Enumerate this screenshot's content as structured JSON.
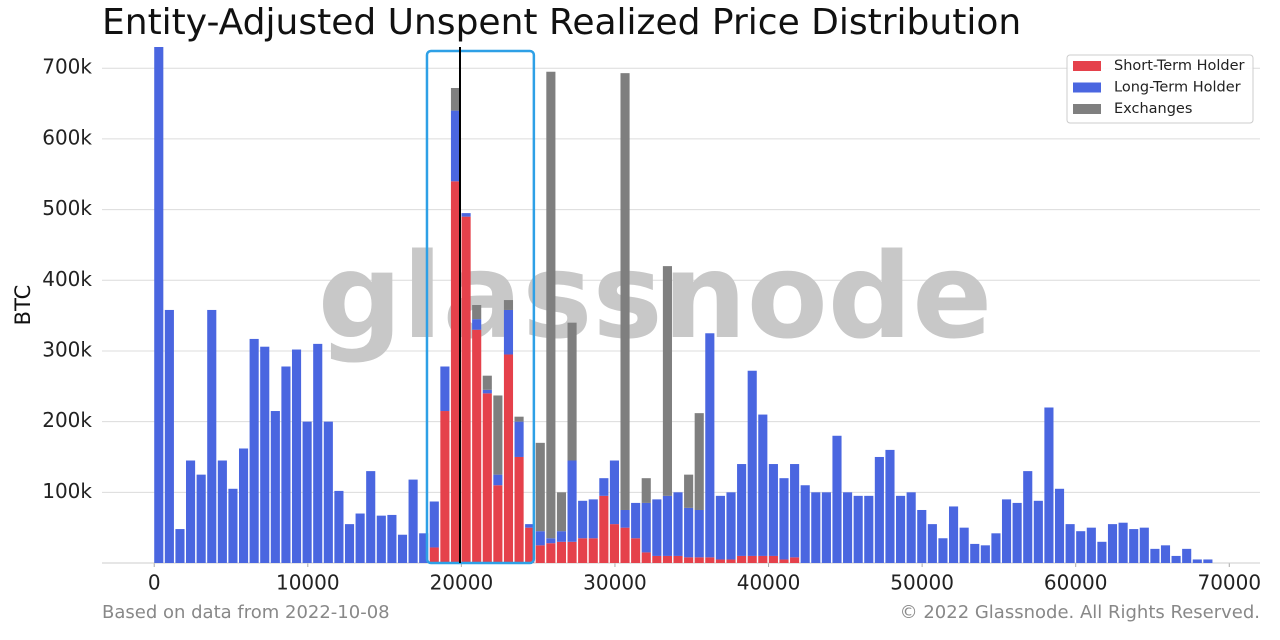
{
  "chart_data": {
    "type": "stacked_histogram",
    "title": "Entity-Adjusted Unspent Realized Price Distribution",
    "ylabel": "BTC",
    "watermark": "glassnode",
    "footer_left": "Based on data from 2022-10-08",
    "footer_right": "© 2022 Glassnode. All Rights Reserved.",
    "bins": [
      0,
      690,
      1380,
      2070,
      2760,
      3450,
      4140,
      4830,
      5520,
      6210,
      6900,
      7590,
      8280,
      8970,
      9660,
      10350,
      11040,
      11730,
      12420,
      13110,
      13800,
      14490,
      15180,
      15870,
      16560,
      17250,
      17940,
      18630,
      19320,
      20010,
      20700,
      21390,
      22080,
      22770,
      23460,
      24150,
      24840,
      25530,
      26220,
      26910,
      27600,
      28290,
      28980,
      29670,
      30360,
      31050,
      31740,
      32430,
      33120,
      33810,
      34500,
      35190,
      35880,
      36570,
      37260,
      37950,
      38640,
      39330,
      40020,
      40710,
      41400,
      42090,
      42780,
      43470,
      44160,
      44850,
      45540,
      46230,
      46920,
      47610,
      48300,
      48990,
      49680,
      50370,
      51060,
      51750,
      52440,
      53130,
      53820,
      54510,
      55200,
      55890,
      56580,
      57270,
      57960,
      58650,
      59340,
      60030,
      60720,
      61410,
      62100,
      62790,
      63480,
      64170,
      64860,
      65550,
      66240,
      66930,
      67620,
      68310,
      69000
    ],
    "series": [
      {
        "name": "Short-Term Holder",
        "color": "#e5414b",
        "values": [
          0,
          0,
          0,
          0,
          0,
          0,
          0,
          0,
          0,
          0,
          0,
          0,
          0,
          0,
          0,
          0,
          0,
          0,
          0,
          0,
          0,
          0,
          0,
          0,
          0,
          0,
          22000,
          215000,
          540000,
          490000,
          330000,
          240000,
          110000,
          295000,
          150000,
          50000,
          25000,
          28000,
          30000,
          30000,
          35000,
          35000,
          95000,
          55000,
          50000,
          35000,
          15000,
          10000,
          10000,
          10000,
          8000,
          8000,
          8000,
          5000,
          5000,
          10000,
          10000,
          10000,
          10000,
          5000,
          8000,
          0,
          0,
          0,
          0,
          0,
          0,
          0,
          0,
          0,
          0,
          0,
          0,
          0,
          0,
          0,
          0,
          0,
          0,
          0,
          0,
          0,
          0,
          0,
          0,
          0,
          0,
          0,
          0,
          0,
          0,
          0,
          0,
          0,
          0,
          0,
          0,
          0,
          0,
          0
        ]
      },
      {
        "name": "Long-Term Holder",
        "color": "#4a66e0",
        "values": [
          730000,
          358000,
          48000,
          145000,
          125000,
          358000,
          145000,
          105000,
          162000,
          317000,
          306000,
          215000,
          278000,
          302000,
          200000,
          310000,
          200000,
          102000,
          55000,
          70000,
          130000,
          67000,
          68000,
          40000,
          118000,
          42000,
          65000,
          63000,
          100000,
          5000,
          15000,
          5000,
          15000,
          63000,
          50000,
          5000,
          20000,
          7000,
          15000,
          115000,
          53000,
          55000,
          25000,
          90000,
          25000,
          50000,
          70000,
          80000,
          85000,
          90000,
          70000,
          67000,
          317000,
          90000,
          95000,
          130000,
          262000,
          200000,
          130000,
          115000,
          132000,
          110000,
          100000,
          100000,
          180000,
          100000,
          95000,
          95000,
          150000,
          160000,
          95000,
          100000,
          75000,
          55000,
          35000,
          80000,
          50000,
          27000,
          25000,
          42000,
          90000,
          85000,
          130000,
          88000,
          220000,
          105000,
          55000,
          45000,
          50000,
          30000,
          55000,
          57000,
          48000,
          50000,
          20000,
          25000,
          10000,
          20000,
          5000,
          5000
        ]
      },
      {
        "name": "Exchanges",
        "color": "#7f7f7f",
        "values": [
          0,
          0,
          0,
          0,
          0,
          0,
          0,
          0,
          0,
          0,
          0,
          0,
          0,
          0,
          0,
          0,
          0,
          0,
          0,
          0,
          0,
          0,
          0,
          0,
          0,
          0,
          0,
          0,
          32000,
          0,
          20000,
          20000,
          112000,
          14000,
          7000,
          0,
          125000,
          660000,
          55000,
          195000,
          0,
          0,
          0,
          0,
          618000,
          0,
          35000,
          0,
          325000,
          0,
          47000,
          137000,
          0,
          0,
          0,
          0,
          0,
          0,
          0,
          0,
          0,
          0,
          0,
          0,
          0,
          0,
          0,
          0,
          0,
          0,
          0,
          0,
          0,
          0,
          0,
          0,
          0,
          0,
          0,
          0,
          0,
          0,
          0,
          0,
          0,
          0,
          0,
          0,
          0,
          0,
          0,
          0,
          0,
          0,
          0,
          0,
          0,
          0,
          0,
          0
        ]
      }
    ],
    "xlim": [
      -3400,
      72000
    ],
    "xticks": [
      0,
      10000,
      20000,
      30000,
      40000,
      50000,
      60000,
      70000
    ],
    "ylim": [
      0,
      730000
    ],
    "yticks": [
      {
        "value": 100000,
        "label": "100k"
      },
      {
        "value": 200000,
        "label": "200k"
      },
      {
        "value": 300000,
        "label": "300k"
      },
      {
        "value": 400000,
        "label": "400k"
      },
      {
        "value": 500000,
        "label": "500k"
      },
      {
        "value": 600000,
        "label": "600k"
      },
      {
        "value": 700000,
        "label": "700k"
      }
    ],
    "marker_x": 19910,
    "highlight_x": [
      17760,
      24720
    ],
    "highlight_color": "#2ea0e6",
    "grid": true,
    "legend": "upper right"
  }
}
